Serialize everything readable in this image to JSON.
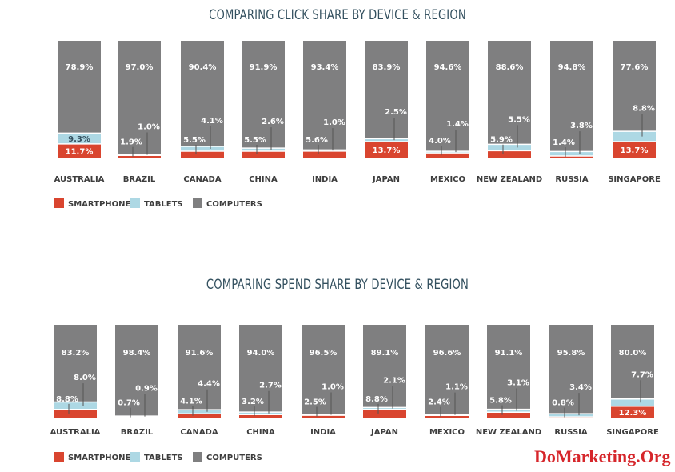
{
  "colors": {
    "smartphones": "#d9452f",
    "tablets": "#add8e4",
    "computers": "#7f7f80"
  },
  "legend": [
    {
      "key": "smartphones",
      "label": "SMARTPHONES"
    },
    {
      "key": "tablets",
      "label": "TABLETS"
    },
    {
      "key": "computers",
      "label": "COMPUTERS"
    }
  ],
  "watermark": "DoMarketing.Org",
  "chart_data": [
    {
      "type": "bar",
      "stacked": true,
      "title": "COMPARING CLICK SHARE BY DEVICE & REGION",
      "categories": [
        "AUSTRALIA",
        "BRAZIL",
        "CANADA",
        "CHINA",
        "INDIA",
        "JAPAN",
        "MEXICO",
        "NEW ZEALAND",
        "RUSSIA",
        "SINGAPORE"
      ],
      "series": [
        {
          "name": "SMARTPHONES",
          "values": [
            11.7,
            1.9,
            5.5,
            5.5,
            5.6,
            13.7,
            4.0,
            5.9,
            1.4,
            13.7
          ]
        },
        {
          "name": "TABLETS",
          "values": [
            9.3,
            1.0,
            4.1,
            2.6,
            1.0,
            2.5,
            1.4,
            5.5,
            3.8,
            8.8
          ]
        },
        {
          "name": "COMPUTERS",
          "values": [
            78.9,
            97.0,
            90.4,
            91.9,
            93.4,
            83.9,
            94.6,
            88.6,
            94.8,
            77.6
          ]
        }
      ],
      "data_labels": {
        "SMARTPHONES": [
          "11.7%",
          "1.9%",
          "5.5%",
          "5.5%",
          "5.6%",
          "13.7%",
          "4.0%",
          "5.9%",
          "1.4%",
          "13.7%"
        ],
        "TABLETS": [
          "9.3%",
          "1.0%",
          "4.1%",
          "2.6%",
          "1.0%",
          "2.5%",
          "1.4%",
          "5.5%",
          "3.8%",
          "8.8%"
        ],
        "COMPUTERS": [
          "78.9%",
          "97.0%",
          "90.4%",
          "91.9%",
          "93.4%",
          "83.9%",
          "94.6%",
          "88.6%",
          "94.8%",
          "77.6%"
        ]
      },
      "ylim": [
        0,
        100
      ]
    },
    {
      "type": "bar",
      "stacked": true,
      "title": "COMPARING SPEND SHARE BY DEVICE & REGION",
      "categories": [
        "AUSTRALIA",
        "BRAZIL",
        "CANADA",
        "CHINA",
        "INDIA",
        "JAPAN",
        "MEXICO",
        "NEW ZEALAND",
        "RUSSIA",
        "SINGAPORE"
      ],
      "series": [
        {
          "name": "SMARTPHONES",
          "values": [
            8.8,
            0.7,
            4.1,
            3.2,
            2.5,
            8.8,
            2.4,
            5.8,
            0.8,
            12.3
          ]
        },
        {
          "name": "TABLETS",
          "values": [
            8.0,
            0.9,
            4.4,
            2.7,
            1.0,
            2.1,
            1.1,
            3.1,
            3.4,
            7.7
          ]
        },
        {
          "name": "COMPUTERS",
          "values": [
            83.2,
            98.4,
            91.6,
            94.0,
            96.5,
            89.1,
            96.6,
            91.1,
            95.8,
            80.0
          ]
        }
      ],
      "data_labels": {
        "SMARTPHONES": [
          "8.8%",
          "0.7%",
          "4.1%",
          "3.2%",
          "2.5%",
          "8.8%",
          "2.4%",
          "5.8%",
          "0.8%",
          "12.3%"
        ],
        "TABLETS": [
          "8.0%",
          "0.9%",
          "4.4%",
          "2.7%",
          "1.0%",
          "2.1%",
          "1.1%",
          "3.1%",
          "3.4%",
          "7.7%"
        ],
        "COMPUTERS": [
          "83.2%",
          "98.4%",
          "91.6%",
          "94.0%",
          "96.5%",
          "89.1%",
          "96.6%",
          "91.1%",
          "95.8%",
          "80.0%"
        ]
      },
      "ylim": [
        0,
        100
      ]
    }
  ]
}
